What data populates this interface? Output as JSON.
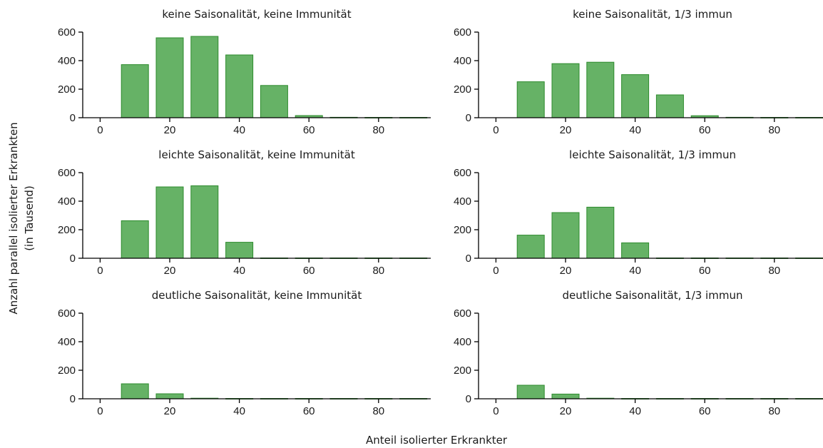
{
  "figure": {
    "xlabel": "Anteil isolierter Erkrankter",
    "ylabel_line1": "Anzahl parallel isolierter Erkrankten",
    "ylabel_line2": "(in Tausend)"
  },
  "colors": {
    "bar_fill": "#66b266",
    "bar_stroke": "#2e8b2e"
  },
  "chart_data": [
    {
      "type": "bar",
      "title": "keine Saisonalität, keine Immunität",
      "x": [
        10,
        20,
        30,
        40,
        50,
        60,
        70,
        80,
        90
      ],
      "values": [
        372,
        560,
        570,
        440,
        226,
        15,
        3,
        2,
        2
      ],
      "xticks": [
        0,
        20,
        40,
        60,
        80
      ],
      "yticks": [
        0,
        200,
        400,
        600
      ],
      "xlim": [
        -5,
        95
      ],
      "ylim": [
        0,
        600
      ]
    },
    {
      "type": "bar",
      "title": "keine Saisonalität, 1/3 immun",
      "x": [
        10,
        20,
        30,
        40,
        50,
        60,
        70,
        80,
        90
      ],
      "values": [
        252,
        379,
        389,
        302,
        160,
        14,
        3,
        2,
        2
      ],
      "xticks": [
        0,
        20,
        40,
        60,
        80
      ],
      "yticks": [
        0,
        200,
        400,
        600
      ],
      "xlim": [
        -5,
        95
      ],
      "ylim": [
        0,
        600
      ]
    },
    {
      "type": "bar",
      "title": "leichte Saisonalität, keine Immunität",
      "x": [
        10,
        20,
        30,
        40,
        50,
        60,
        70,
        80,
        90
      ],
      "values": [
        263,
        500,
        508,
        112,
        2,
        2,
        2,
        2,
        2
      ],
      "xticks": [
        0,
        20,
        40,
        60,
        80
      ],
      "yticks": [
        0,
        200,
        400,
        600
      ],
      "xlim": [
        -5,
        95
      ],
      "ylim": [
        0,
        600
      ]
    },
    {
      "type": "bar",
      "title": "leichte Saisonalität, 1/3 immun",
      "x": [
        10,
        20,
        30,
        40,
        50,
        60,
        70,
        80,
        90
      ],
      "values": [
        162,
        320,
        358,
        108,
        2,
        2,
        2,
        2,
        2
      ],
      "xticks": [
        0,
        20,
        40,
        60,
        80
      ],
      "yticks": [
        0,
        200,
        400,
        600
      ],
      "xlim": [
        -5,
        95
      ],
      "ylim": [
        0,
        600
      ]
    },
    {
      "type": "bar",
      "title": "deutliche Saisonalität, keine Immunität",
      "x": [
        10,
        20,
        30,
        40,
        50,
        60,
        70,
        80,
        90
      ],
      "values": [
        105,
        35,
        4,
        2,
        2,
        2,
        2,
        2,
        2
      ],
      "xticks": [
        0,
        20,
        40,
        60,
        80
      ],
      "yticks": [
        0,
        200,
        400,
        600
      ],
      "xlim": [
        -5,
        95
      ],
      "ylim": [
        0,
        600
      ]
    },
    {
      "type": "bar",
      "title": "deutliche Saisonalität, 1/3 immun",
      "x": [
        10,
        20,
        30,
        40,
        50,
        60,
        70,
        80,
        90
      ],
      "values": [
        95,
        33,
        4,
        2,
        2,
        2,
        2,
        2,
        2
      ],
      "xticks": [
        0,
        20,
        40,
        60,
        80
      ],
      "yticks": [
        0,
        200,
        400,
        600
      ],
      "xlim": [
        -5,
        95
      ],
      "ylim": [
        0,
        600
      ]
    }
  ]
}
